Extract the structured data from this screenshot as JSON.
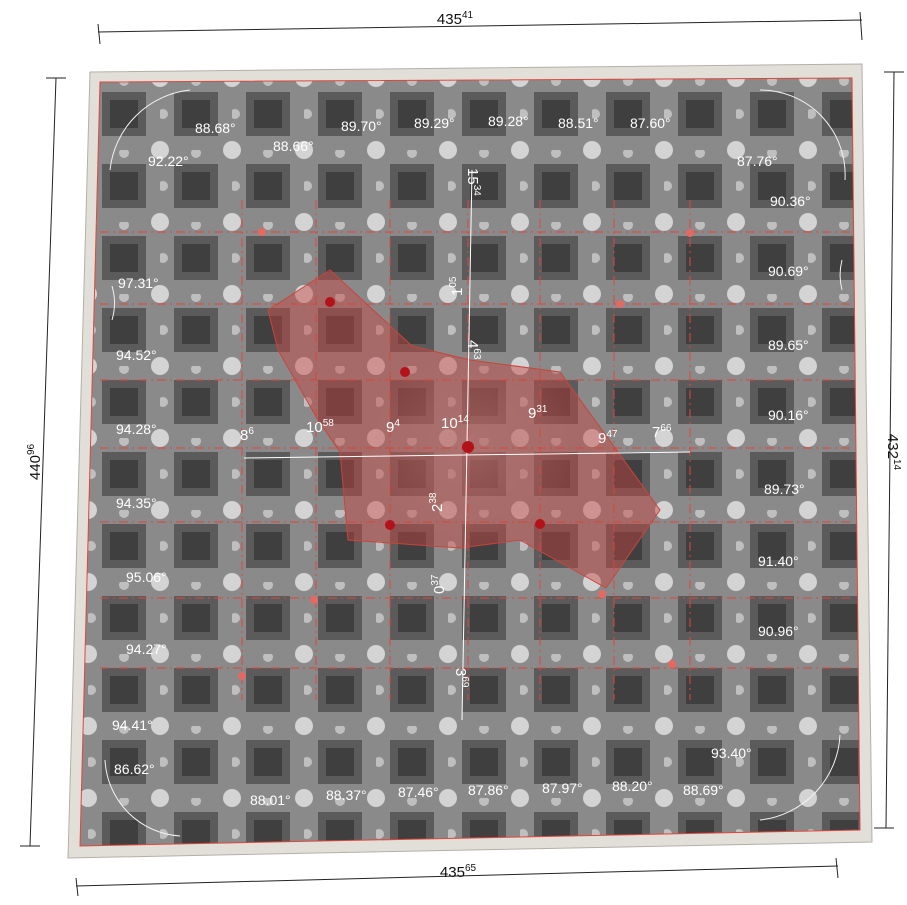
{
  "dimensions": {
    "top": {
      "main": "435",
      "sup": "41"
    },
    "bottom": {
      "main": "435",
      "sup": "65"
    },
    "left": {
      "main": "440",
      "sup": "96"
    },
    "right": {
      "main": "432",
      "sup": "14"
    }
  },
  "angles": {
    "top": [
      "88.68°",
      "88.66°",
      "89.70°",
      "89.29°",
      "89.28°",
      "88.51°",
      "87.60°"
    ],
    "top_left": "92.22°",
    "top_right": "87.76°",
    "left": [
      "97.31°",
      "94.52°",
      "94.28°",
      "94.35°",
      "95.06°",
      "94.27°",
      "94.41°"
    ],
    "right": [
      "90.36°",
      "90.69°",
      "89.65°",
      "90.16°",
      "89.73°",
      "91.40°",
      "90.96°"
    ],
    "bottom_left": "86.62°",
    "bottom_right": "93.40°",
    "bottom": [
      "88.01°",
      "88.37°",
      "87.46°",
      "87.86°",
      "87.97°",
      "88.20°",
      "88.69°"
    ]
  },
  "inner_measures": {
    "horizontal": [
      {
        "main": "8",
        "sup": "6"
      },
      {
        "main": "10",
        "sup": "58"
      },
      {
        "main": "9",
        "sup": "4"
      },
      {
        "main": "10",
        "sup": "14"
      },
      {
        "main": "9",
        "sup": "31"
      },
      {
        "main": "9",
        "sup": "47"
      },
      {
        "main": "7",
        "sup": "66"
      }
    ],
    "vertical": [
      {
        "main": "15",
        "sup": "34"
      },
      {
        "main": "1",
        "sup": "05"
      },
      {
        "main": "4",
        "sup": "63"
      },
      {
        "main": "2",
        "sup": "38"
      },
      {
        "main": "0",
        "sup": "37"
      },
      {
        "main": "3",
        "sup": "69"
      }
    ]
  },
  "colors": {
    "frame": "#e2dfd9",
    "ceiling": "#7c7c7c",
    "guide": "#e0463c",
    "highlight": "#c8453d",
    "dimension_line": "#222222"
  }
}
